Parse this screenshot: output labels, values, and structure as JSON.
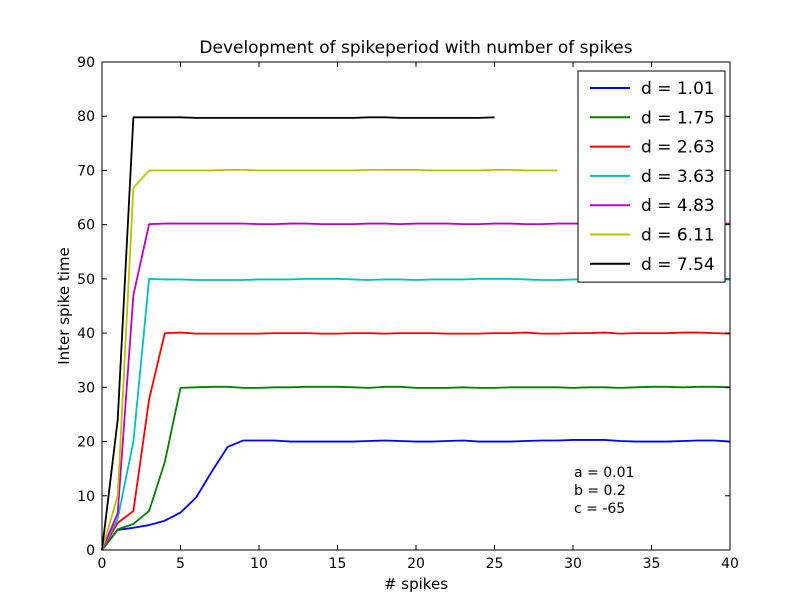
{
  "chart_data": {
    "type": "line",
    "title": "Development of spikeperiod with number of spikes",
    "xlabel": "# spikes",
    "ylabel": "Inter spike time",
    "xlim": [
      0,
      40
    ],
    "ylim": [
      0,
      90
    ],
    "xticks": [
      0,
      5,
      10,
      15,
      20,
      25,
      30,
      35,
      40
    ],
    "yticks": [
      0,
      10,
      20,
      30,
      40,
      50,
      60,
      70,
      80,
      90
    ],
    "grid": false,
    "legend_position": "top-right",
    "annotations": [
      "a = 0.01",
      "b = 0.2",
      "c = -65"
    ],
    "series": [
      {
        "name": "d = 1.01",
        "color": "#0000ff",
        "x": [
          0,
          1,
          2,
          3,
          4,
          5,
          6,
          7,
          8,
          9,
          10,
          11,
          12,
          13,
          14,
          15,
          16,
          17,
          18,
          19,
          20,
          21,
          22,
          23,
          24,
          25,
          26,
          27,
          28,
          29,
          30,
          31,
          32,
          33,
          34,
          35,
          36,
          37,
          38,
          39,
          40
        ],
        "y": [
          0,
          3.7,
          4.1,
          4.6,
          5.4,
          6.9,
          9.7,
          14.5,
          19.0,
          20.2,
          20.2,
          20.2,
          20.0,
          20.0,
          20.0,
          20.0,
          20.0,
          20.1,
          20.2,
          20.1,
          20.0,
          20.0,
          20.1,
          20.2,
          20.0,
          20.0,
          20.0,
          20.1,
          20.2,
          20.2,
          20.3,
          20.3,
          20.3,
          20.1,
          20.0,
          20.0,
          20.0,
          20.1,
          20.2,
          20.2,
          20.0
        ]
      },
      {
        "name": "d = 1.75",
        "color": "#008000",
        "x": [
          0,
          1,
          2,
          3,
          4,
          5,
          6,
          7,
          8,
          9,
          10,
          11,
          12,
          13,
          14,
          15,
          16,
          17,
          18,
          19,
          20,
          21,
          22,
          23,
          24,
          25,
          26,
          27,
          28,
          29,
          30,
          31,
          32,
          33,
          34,
          35,
          36,
          37,
          38,
          39,
          40
        ],
        "y": [
          0,
          3.8,
          4.8,
          7.2,
          16.2,
          29.9,
          30.0,
          30.1,
          30.1,
          29.9,
          29.9,
          30.0,
          30.0,
          30.1,
          30.1,
          30.1,
          30.0,
          29.9,
          30.1,
          30.1,
          29.9,
          29.9,
          29.9,
          30.0,
          29.9,
          29.9,
          30.0,
          30.0,
          30.0,
          30.0,
          29.9,
          30.0,
          30.0,
          29.9,
          30.0,
          30.1,
          30.1,
          30.0,
          30.1,
          30.1,
          30.0
        ]
      },
      {
        "name": "d = 2.63",
        "color": "#ff0000",
        "x": [
          0,
          1,
          2,
          3,
          4,
          5,
          6,
          7,
          8,
          9,
          10,
          11,
          12,
          13,
          14,
          15,
          16,
          17,
          18,
          19,
          20,
          21,
          22,
          23,
          24,
          25,
          26,
          27,
          28,
          29,
          30,
          31,
          32,
          33,
          34,
          35,
          36,
          37,
          38,
          39,
          40
        ],
        "y": [
          0,
          5.0,
          7.2,
          27.8,
          40.0,
          40.1,
          39.9,
          39.9,
          39.9,
          39.9,
          39.9,
          40.0,
          40.0,
          40.0,
          39.9,
          39.9,
          40.0,
          40.0,
          39.9,
          40.0,
          40.0,
          40.0,
          39.9,
          39.9,
          39.9,
          40.0,
          40.0,
          40.1,
          39.9,
          39.9,
          40.0,
          40.0,
          40.1,
          39.9,
          40.0,
          40.0,
          40.0,
          40.1,
          40.1,
          40.0,
          39.9
        ]
      },
      {
        "name": "d = 3.63",
        "color": "#00bfbf",
        "x": [
          0,
          1,
          2,
          3,
          4,
          5,
          6,
          7,
          8,
          9,
          10,
          11,
          12,
          13,
          14,
          15,
          16,
          17,
          18,
          19,
          20,
          21,
          22,
          23,
          24,
          25,
          26,
          27,
          28,
          29,
          30,
          31,
          32,
          33,
          34,
          35,
          36,
          37,
          38,
          39,
          40
        ],
        "y": [
          0,
          5.8,
          20.0,
          50.0,
          49.9,
          49.9,
          49.8,
          49.8,
          49.8,
          49.8,
          49.9,
          49.9,
          49.9,
          50.0,
          50.0,
          50.0,
          49.9,
          49.8,
          49.9,
          49.9,
          49.8,
          49.9,
          49.9,
          49.9,
          50.0,
          50.0,
          50.0,
          49.9,
          49.8,
          49.8,
          49.9,
          49.9,
          49.9,
          50.0,
          50.0,
          50.0,
          49.9,
          49.9,
          49.8,
          49.8,
          49.9
        ]
      },
      {
        "name": "d = 4.83",
        "color": "#bf00bf",
        "x": [
          0,
          1,
          2,
          3,
          4,
          5,
          6,
          7,
          8,
          9,
          10,
          11,
          12,
          13,
          14,
          15,
          16,
          17,
          18,
          19,
          20,
          21,
          22,
          23,
          24,
          25,
          26,
          27,
          28,
          29,
          30,
          31,
          32,
          33,
          34,
          35,
          36,
          37,
          38,
          39,
          40
        ],
        "y": [
          0,
          6.8,
          47.0,
          60.1,
          60.2,
          60.2,
          60.2,
          60.2,
          60.2,
          60.2,
          60.1,
          60.1,
          60.2,
          60.2,
          60.1,
          60.1,
          60.1,
          60.2,
          60.2,
          60.1,
          60.2,
          60.2,
          60.2,
          60.1,
          60.1,
          60.2,
          60.2,
          60.1,
          60.1,
          60.2,
          60.2,
          60.2,
          60.2,
          60.1,
          60.1,
          60.2,
          60.2,
          60.2,
          60.1,
          60.1,
          60.2
        ]
      },
      {
        "name": "d = 6.11",
        "color": "#bfbf00",
        "x": [
          0,
          1,
          2,
          3,
          4,
          5,
          6,
          7,
          8,
          9,
          10,
          11,
          12,
          13,
          14,
          15,
          16,
          17,
          18,
          19,
          20,
          21,
          22,
          23,
          24,
          25,
          26,
          27,
          28,
          29
        ],
        "y": [
          0,
          10.0,
          66.8,
          70.0,
          70.0,
          70.0,
          70.0,
          70.0,
          70.1,
          70.1,
          70.0,
          70.0,
          70.0,
          70.0,
          70.0,
          70.0,
          70.0,
          70.1,
          70.1,
          70.1,
          70.1,
          70.0,
          70.0,
          70.0,
          70.0,
          70.1,
          70.1,
          70.0,
          70.0,
          70.0
        ]
      },
      {
        "name": "d = 7.54",
        "color": "#000000",
        "x": [
          0,
          1,
          2,
          3,
          4,
          5,
          6,
          7,
          8,
          9,
          10,
          11,
          12,
          13,
          14,
          15,
          16,
          17,
          18,
          19,
          20,
          21,
          22,
          23,
          24,
          25
        ],
        "y": [
          0,
          24.0,
          79.8,
          79.8,
          79.8,
          79.8,
          79.7,
          79.7,
          79.7,
          79.7,
          79.7,
          79.7,
          79.7,
          79.7,
          79.7,
          79.7,
          79.7,
          79.8,
          79.8,
          79.7,
          79.7,
          79.7,
          79.7,
          79.7,
          79.7,
          79.8
        ]
      }
    ]
  }
}
